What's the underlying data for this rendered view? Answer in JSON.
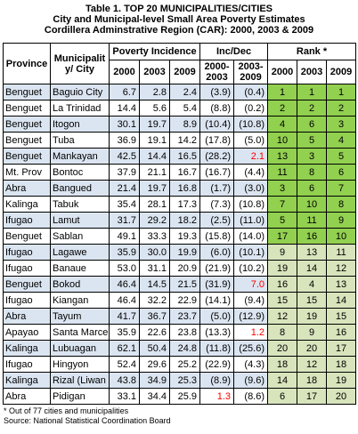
{
  "title": {
    "line1": "Table 1.  TOP 20 MUNICIPALITIES/CITIES",
    "line2": "City and Municipal-level Small Area Poverty Estimates",
    "line3": "Cordillera Adminstrative Region (CAR): 2000, 2003 & 2009"
  },
  "headers": {
    "province": "Province",
    "municipality": "Municipalit y/ City",
    "poverty_incidence": "Poverty Incidence",
    "inc_dec": "Inc/Dec",
    "rank": "Rank *",
    "y2000": "2000",
    "y2003": "2003",
    "y2009": "2009",
    "d1": "2000-2003",
    "d2": "2003-2009",
    "r2000": "2000",
    "r2003": "2003",
    "r2009": "2009"
  },
  "rows": [
    {
      "province": "Benguet",
      "municipality": "Baguio City",
      "p2000": "6.7",
      "p2003": "2.8",
      "p2009": "2.4",
      "d1": "(3.9)",
      "d2": "(0.4)",
      "r2000": "1",
      "r2003": "1",
      "r2009": "1",
      "d1_red": false,
      "d2_red": false
    },
    {
      "province": "Benguet",
      "municipality": "La Trinidad",
      "p2000": "14.4",
      "p2003": "5.6",
      "p2009": "5.4",
      "d1": "(8.8)",
      "d2": "(0.2)",
      "r2000": "2",
      "r2003": "2",
      "r2009": "2",
      "d1_red": false,
      "d2_red": false
    },
    {
      "province": "Benguet",
      "municipality": "Itogon",
      "p2000": "30.1",
      "p2003": "19.7",
      "p2009": "8.9",
      "d1": "(10.4)",
      "d2": "(10.8)",
      "r2000": "4",
      "r2003": "6",
      "r2009": "3",
      "d1_red": false,
      "d2_red": false
    },
    {
      "province": "Benguet",
      "municipality": "Tuba",
      "p2000": "36.9",
      "p2003": "19.1",
      "p2009": "14.2",
      "d1": "(17.8)",
      "d2": "(5.0)",
      "r2000": "10",
      "r2003": "5",
      "r2009": "4",
      "d1_red": false,
      "d2_red": false
    },
    {
      "province": "Benguet",
      "municipality": "Mankayan",
      "p2000": "42.5",
      "p2003": "14.4",
      "p2009": "16.5",
      "d1": "(28.2)",
      "d2": "2.1",
      "r2000": "13",
      "r2003": "3",
      "r2009": "5",
      "d1_red": false,
      "d2_red": true
    },
    {
      "province": "Mt. Prov",
      "municipality": "Bontoc",
      "p2000": "37.9",
      "p2003": "21.1",
      "p2009": "16.7",
      "d1": "(16.7)",
      "d2": "(4.4)",
      "r2000": "11",
      "r2003": "8",
      "r2009": "6",
      "d1_red": false,
      "d2_red": false
    },
    {
      "province": "Abra",
      "municipality": "Bangued",
      "p2000": "21.4",
      "p2003": "19.7",
      "p2009": "16.8",
      "d1": "(1.7)",
      "d2": "(3.0)",
      "r2000": "3",
      "r2003": "6",
      "r2009": "7",
      "d1_red": false,
      "d2_red": false
    },
    {
      "province": "Kalinga",
      "municipality": "Tabuk",
      "p2000": "35.4",
      "p2003": "28.1",
      "p2009": "17.3",
      "d1": "(7.3)",
      "d2": "(10.8)",
      "r2000": "7",
      "r2003": "10",
      "r2009": "8",
      "d1_red": false,
      "d2_red": false
    },
    {
      "province": "Ifugao",
      "municipality": "Lamut",
      "p2000": "31.7",
      "p2003": "29.2",
      "p2009": "18.2",
      "d1": "(2.5)",
      "d2": "(11.0)",
      "r2000": "5",
      "r2003": "11",
      "r2009": "9",
      "d1_red": false,
      "d2_red": false
    },
    {
      "province": "Benguet",
      "municipality": "Sablan",
      "p2000": "49.1",
      "p2003": "33.3",
      "p2009": "19.3",
      "d1": "(15.8)",
      "d2": "(14.0)",
      "r2000": "17",
      "r2003": "16",
      "r2009": "10",
      "d1_red": false,
      "d2_red": false
    },
    {
      "province": "Ifugao",
      "municipality": "Lagawe",
      "p2000": "35.9",
      "p2003": "30.0",
      "p2009": "19.9",
      "d1": "(6.0)",
      "d2": "(10.1)",
      "r2000": "9",
      "r2003": "13",
      "r2009": "11",
      "d1_red": false,
      "d2_red": false
    },
    {
      "province": "Ifugao",
      "municipality": "Banaue",
      "p2000": "53.0",
      "p2003": "31.1",
      "p2009": "20.9",
      "d1": "(21.9)",
      "d2": "(10.2)",
      "r2000": "19",
      "r2003": "14",
      "r2009": "12",
      "d1_red": false,
      "d2_red": false
    },
    {
      "province": "Benguet",
      "municipality": "Bokod",
      "p2000": "46.4",
      "p2003": "14.5",
      "p2009": "21.5",
      "d1": "(31.9)",
      "d2": "7.0",
      "r2000": "16",
      "r2003": "4",
      "r2009": "13",
      "d1_red": false,
      "d2_red": true
    },
    {
      "province": "Ifugao",
      "municipality": "Kiangan",
      "p2000": "46.4",
      "p2003": "32.2",
      "p2009": "22.9",
      "d1": "(14.1)",
      "d2": "(9.4)",
      "r2000": "15",
      "r2003": "15",
      "r2009": "14",
      "d1_red": false,
      "d2_red": false
    },
    {
      "province": "Abra",
      "municipality": "Tayum",
      "p2000": "41.7",
      "p2003": "36.7",
      "p2009": "23.7",
      "d1": "(5.0)",
      "d2": "(12.9)",
      "r2000": "12",
      "r2003": "19",
      "r2009": "15",
      "d1_red": false,
      "d2_red": false
    },
    {
      "province": "Apayao",
      "municipality": "Santa Marcel",
      "p2000": "35.9",
      "p2003": "22.6",
      "p2009": "23.8",
      "d1": "(13.3)",
      "d2": "1.2",
      "r2000": "8",
      "r2003": "9",
      "r2009": "16",
      "d1_red": false,
      "d2_red": true
    },
    {
      "province": "Kalinga",
      "municipality": "Lubuagan",
      "p2000": "62.1",
      "p2003": "50.4",
      "p2009": "24.8",
      "d1": "(11.8)",
      "d2": "(25.6)",
      "r2000": "20",
      "r2003": "20",
      "r2009": "17",
      "d1_red": false,
      "d2_red": false
    },
    {
      "province": "Ifugao",
      "municipality": "Hingyon",
      "p2000": "52.4",
      "p2003": "29.6",
      "p2009": "25.2",
      "d1": "(22.9)",
      "d2": "(4.3)",
      "r2000": "18",
      "r2003": "12",
      "r2009": "18",
      "d1_red": false,
      "d2_red": false
    },
    {
      "province": "Kalinga",
      "municipality": "Rizal (Liwan",
      "p2000": "43.8",
      "p2003": "34.9",
      "p2009": "25.3",
      "d1": "(8.9)",
      "d2": "(9.6)",
      "r2000": "14",
      "r2003": "18",
      "r2009": "19",
      "d1_red": false,
      "d2_red": false
    },
    {
      "province": "Abra",
      "municipality": "Pidigan",
      "p2000": "33.1",
      "p2003": "34.4",
      "p2009": "25.9",
      "d1": "1.3",
      "d2": "(8.6)",
      "r2000": "6",
      "r2003": "17",
      "r2009": "20",
      "d1_red": true,
      "d2_red": false
    }
  ],
  "footnotes": {
    "line1": "* Out of 77 cities and municipalities",
    "line2": "Source: National Statistical Coordination Board"
  },
  "colors": {
    "rank_top": "#92d050",
    "rank_bottom": "#d8e4bc",
    "row_tint": "#dbe5f1",
    "negative_red": "#ff0000"
  }
}
